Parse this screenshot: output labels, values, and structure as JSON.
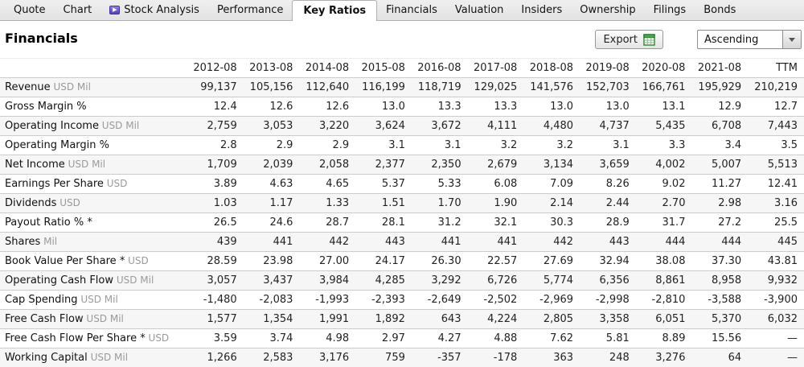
{
  "tabs": [
    {
      "label": "Quote",
      "active": false
    },
    {
      "label": "Chart",
      "active": false
    },
    {
      "label": "Stock Analysis",
      "active": false,
      "icon": "premium-arrow-icon"
    },
    {
      "label": "Performance",
      "active": false
    },
    {
      "label": "Key Ratios",
      "active": true
    },
    {
      "label": "Financials",
      "active": false
    },
    {
      "label": "Valuation",
      "active": false
    },
    {
      "label": "Insiders",
      "active": false
    },
    {
      "label": "Ownership",
      "active": false
    },
    {
      "label": "Filings",
      "active": false
    },
    {
      "label": "Bonds",
      "active": false
    }
  ],
  "header": {
    "title": "Financials",
    "export_label": "Export",
    "sort_value": "Ascending"
  },
  "colors": {
    "export_icon_green": "#4caf50",
    "export_icon_green_dark": "#2e7d32",
    "premium_icon_purple": "#5143c0",
    "tabbar_gray": "#e8e8e8",
    "row_stripe": "#f6f6f6",
    "row_border": "#cccccc"
  },
  "table": {
    "columns": [
      "2012-08",
      "2013-08",
      "2014-08",
      "2015-08",
      "2016-08",
      "2017-08",
      "2018-08",
      "2019-08",
      "2020-08",
      "2021-08",
      "TTM"
    ],
    "rows": [
      {
        "label": "Revenue",
        "unit": "USD Mil",
        "values": [
          "99,137",
          "105,156",
          "112,640",
          "116,199",
          "118,719",
          "129,025",
          "141,576",
          "152,703",
          "166,761",
          "195,929",
          "210,219"
        ]
      },
      {
        "label": "Gross Margin %",
        "unit": "",
        "values": [
          "12.4",
          "12.6",
          "12.6",
          "13.0",
          "13.3",
          "13.3",
          "13.0",
          "13.0",
          "13.1",
          "12.9",
          "12.7"
        ]
      },
      {
        "label": "Operating Income",
        "unit": "USD Mil",
        "values": [
          "2,759",
          "3,053",
          "3,220",
          "3,624",
          "3,672",
          "4,111",
          "4,480",
          "4,737",
          "5,435",
          "6,708",
          "7,443"
        ]
      },
      {
        "label": "Operating Margin %",
        "unit": "",
        "values": [
          "2.8",
          "2.9",
          "2.9",
          "3.1",
          "3.1",
          "3.2",
          "3.2",
          "3.1",
          "3.3",
          "3.4",
          "3.5"
        ]
      },
      {
        "label": "Net Income",
        "unit": "USD Mil",
        "values": [
          "1,709",
          "2,039",
          "2,058",
          "2,377",
          "2,350",
          "2,679",
          "3,134",
          "3,659",
          "4,002",
          "5,007",
          "5,513"
        ]
      },
      {
        "label": "Earnings Per Share",
        "unit": "USD",
        "values": [
          "3.89",
          "4.63",
          "4.65",
          "5.37",
          "5.33",
          "6.08",
          "7.09",
          "8.26",
          "9.02",
          "11.27",
          "12.41"
        ]
      },
      {
        "label": "Dividends",
        "unit": "USD",
        "values": [
          "1.03",
          "1.17",
          "1.33",
          "1.51",
          "1.70",
          "1.90",
          "2.14",
          "2.44",
          "2.70",
          "2.98",
          "3.16"
        ]
      },
      {
        "label": "Payout Ratio % *",
        "unit": "",
        "values": [
          "26.5",
          "24.6",
          "28.7",
          "28.1",
          "31.2",
          "32.1",
          "30.3",
          "28.9",
          "31.7",
          "27.2",
          "25.5"
        ]
      },
      {
        "label": "Shares",
        "unit": "Mil",
        "values": [
          "439",
          "441",
          "442",
          "443",
          "441",
          "441",
          "442",
          "443",
          "444",
          "444",
          "445"
        ]
      },
      {
        "label": "Book Value Per Share *",
        "unit": "USD",
        "values": [
          "28.59",
          "23.98",
          "27.00",
          "24.17",
          "26.30",
          "22.57",
          "27.69",
          "32.94",
          "38.08",
          "37.30",
          "43.81"
        ]
      },
      {
        "label": "Operating Cash Flow",
        "unit": "USD Mil",
        "values": [
          "3,057",
          "3,437",
          "3,984",
          "4,285",
          "3,292",
          "6,726",
          "5,774",
          "6,356",
          "8,861",
          "8,958",
          "9,932"
        ]
      },
      {
        "label": "Cap Spending",
        "unit": "USD Mil",
        "values": [
          "-1,480",
          "-2,083",
          "-1,993",
          "-2,393",
          "-2,649",
          "-2,502",
          "-2,969",
          "-2,998",
          "-2,810",
          "-3,588",
          "-3,900"
        ]
      },
      {
        "label": "Free Cash Flow",
        "unit": "USD Mil",
        "values": [
          "1,577",
          "1,354",
          "1,991",
          "1,892",
          "643",
          "4,224",
          "2,805",
          "3,358",
          "6,051",
          "5,370",
          "6,032"
        ]
      },
      {
        "label": "Free Cash Flow Per Share *",
        "unit": "USD",
        "values": [
          "3.59",
          "3.74",
          "4.98",
          "2.97",
          "4.27",
          "4.88",
          "7.62",
          "5.81",
          "8.89",
          "15.56",
          "—"
        ]
      },
      {
        "label": "Working Capital",
        "unit": "USD Mil",
        "values": [
          "1,266",
          "2,583",
          "3,176",
          "759",
          "-357",
          "-178",
          "363",
          "248",
          "3,276",
          "64",
          "—"
        ]
      }
    ]
  }
}
